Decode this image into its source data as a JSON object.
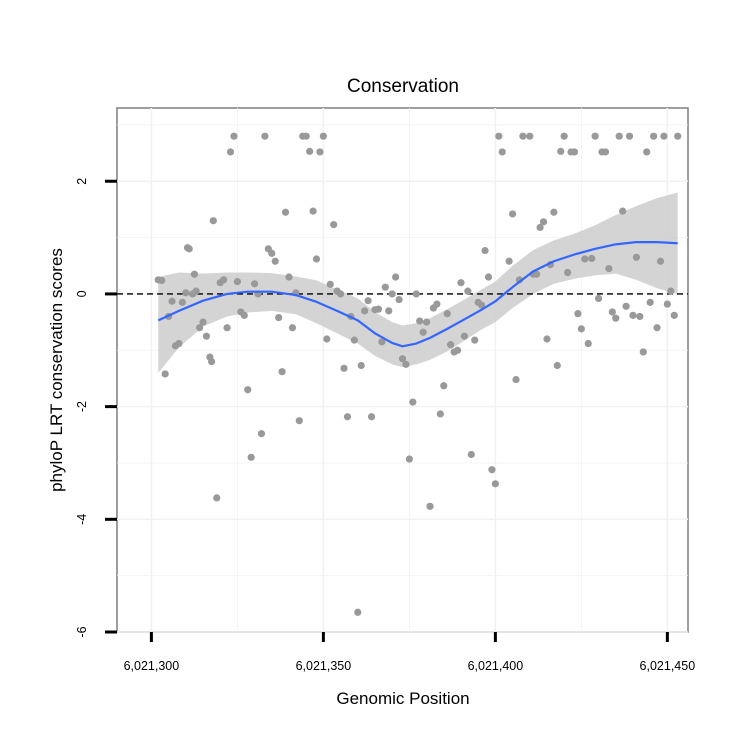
{
  "chart_data": {
    "type": "scatter",
    "title": "Conservation",
    "xlabel": "Genomic Position",
    "ylabel": "phyloP LRT conservation scores",
    "xlim": [
      6021290,
      6021456
    ],
    "ylim": [
      -6,
      3.3
    ],
    "x_ticks": [
      {
        "value": 6021300,
        "label": "6,021,300"
      },
      {
        "value": 6021350,
        "label": "6,021,350"
      },
      {
        "value": 6021400,
        "label": "6,021,400"
      },
      {
        "value": 6021450,
        "label": "6,021,450"
      }
    ],
    "y_ticks": [
      {
        "value": -6,
        "label": "-6"
      },
      {
        "value": -4,
        "label": "-4"
      },
      {
        "value": -2,
        "label": "-2"
      },
      {
        "value": 0,
        "label": "0"
      },
      {
        "value": 2,
        "label": "2"
      }
    ],
    "grid": true,
    "reference_line": {
      "y": 0,
      "style": "dashed"
    },
    "point_color": "#999999",
    "smooth_color": "#3366ff",
    "band_color": "#cccccc",
    "points": [
      [
        6021302,
        0.25
      ],
      [
        6021303,
        0.24
      ],
      [
        6021304,
        -1.42
      ],
      [
        6021305,
        -0.4
      ],
      [
        6021306,
        -0.13
      ],
      [
        6021307,
        -0.92
      ],
      [
        6021308,
        -0.88
      ],
      [
        6021309,
        -0.15
      ],
      [
        6021310,
        0.02
      ],
      [
        6021310.5,
        0.82
      ],
      [
        6021311,
        0.8
      ],
      [
        6021312,
        0.0
      ],
      [
        6021312.5,
        0.35
      ],
      [
        6021313,
        0.05
      ],
      [
        6021314,
        -0.6
      ],
      [
        6021315,
        -0.5
      ],
      [
        6021316,
        -0.75
      ],
      [
        6021317,
        -1.12
      ],
      [
        6021317.5,
        -1.2
      ],
      [
        6021318,
        1.3
      ],
      [
        6021319,
        -3.62
      ],
      [
        6021320,
        0.2
      ],
      [
        6021321,
        0.25
      ],
      [
        6021322,
        -0.6
      ],
      [
        6021323,
        2.52
      ],
      [
        6021324,
        2.8
      ],
      [
        6021325,
        0.22
      ],
      [
        6021326,
        -0.32
      ],
      [
        6021327,
        -0.38
      ],
      [
        6021328,
        -1.7
      ],
      [
        6021329,
        -2.9
      ],
      [
        6021330,
        0.18
      ],
      [
        6021331,
        0.0
      ],
      [
        6021332,
        -2.48
      ],
      [
        6021333,
        2.8
      ],
      [
        6021334,
        0.8
      ],
      [
        6021335,
        0.72
      ],
      [
        6021336,
        0.58
      ],
      [
        6021337,
        -0.42
      ],
      [
        6021338,
        -1.38
      ],
      [
        6021339,
        1.45
      ],
      [
        6021340,
        0.3
      ],
      [
        6021341,
        -0.6
      ],
      [
        6021342,
        0.02
      ],
      [
        6021343,
        -2.25
      ],
      [
        6021344,
        2.8
      ],
      [
        6021345,
        2.8
      ],
      [
        6021346,
        2.53
      ],
      [
        6021347,
        1.47
      ],
      [
        6021348,
        0.62
      ],
      [
        6021349,
        2.52
      ],
      [
        6021350,
        2.8
      ],
      [
        6021351,
        -0.8
      ],
      [
        6021352,
        0.17
      ],
      [
        6021353,
        1.23
      ],
      [
        6021354,
        0.05
      ],
      [
        6021355,
        0.0
      ],
      [
        6021356,
        -1.32
      ],
      [
        6021357,
        -2.18
      ],
      [
        6021358,
        -0.4
      ],
      [
        6021359,
        -0.82
      ],
      [
        6021360,
        -5.65
      ],
      [
        6021361,
        -1.27
      ],
      [
        6021362,
        -0.3
      ],
      [
        6021363,
        -0.12
      ],
      [
        6021364,
        -2.18
      ],
      [
        6021365,
        -0.28
      ],
      [
        6021366,
        -0.27
      ],
      [
        6021367,
        -0.85
      ],
      [
        6021368,
        0.12
      ],
      [
        6021369,
        -0.3
      ],
      [
        6021370,
        0.0
      ],
      [
        6021371,
        0.3
      ],
      [
        6021372,
        -0.1
      ],
      [
        6021373,
        -1.15
      ],
      [
        6021374,
        -1.25
      ],
      [
        6021375,
        -2.93
      ],
      [
        6021376,
        -1.92
      ],
      [
        6021377,
        0.0
      ],
      [
        6021378,
        -0.48
      ],
      [
        6021379,
        -0.68
      ],
      [
        6021380,
        -0.5
      ],
      [
        6021381,
        -3.77
      ],
      [
        6021382,
        -0.25
      ],
      [
        6021383,
        -0.18
      ],
      [
        6021384,
        -2.13
      ],
      [
        6021385,
        -1.63
      ],
      [
        6021386,
        -0.35
      ],
      [
        6021387,
        -0.9
      ],
      [
        6021388,
        -1.03
      ],
      [
        6021389,
        -1.0
      ],
      [
        6021390,
        0.2
      ],
      [
        6021391,
        -0.75
      ],
      [
        6021392,
        0.05
      ],
      [
        6021393,
        -2.85
      ],
      [
        6021394,
        -0.82
      ],
      [
        6021395,
        -0.15
      ],
      [
        6021396,
        -0.2
      ],
      [
        6021397,
        0.77
      ],
      [
        6021398,
        0.3
      ],
      [
        6021399,
        -3.12
      ],
      [
        6021400,
        -3.37
      ],
      [
        6021401,
        2.8
      ],
      [
        6021402,
        2.52
      ],
      [
        6021404,
        0.58
      ],
      [
        6021405,
        1.42
      ],
      [
        6021406,
        -1.52
      ],
      [
        6021407,
        0.25
      ],
      [
        6021408,
        2.8
      ],
      [
        6021410,
        2.8
      ],
      [
        6021411,
        0.35
      ],
      [
        6021412,
        0.35
      ],
      [
        6021413,
        1.18
      ],
      [
        6021414,
        1.28
      ],
      [
        6021415,
        -0.8
      ],
      [
        6021416,
        0.52
      ],
      [
        6021417,
        1.45
      ],
      [
        6021418,
        -1.27
      ],
      [
        6021419,
        2.53
      ],
      [
        6021420,
        2.8
      ],
      [
        6021421,
        0.38
      ],
      [
        6021422,
        2.52
      ],
      [
        6021423,
        2.52
      ],
      [
        6021424,
        -0.35
      ],
      [
        6021425,
        -0.62
      ],
      [
        6021426,
        0.62
      ],
      [
        6021427,
        -0.88
      ],
      [
        6021428,
        0.63
      ],
      [
        6021429,
        2.8
      ],
      [
        6021430,
        -0.08
      ],
      [
        6021431,
        2.52
      ],
      [
        6021432,
        2.52
      ],
      [
        6021433,
        0.45
      ],
      [
        6021434,
        -0.32
      ],
      [
        6021435,
        -0.43
      ],
      [
        6021436,
        2.8
      ],
      [
        6021437,
        1.47
      ],
      [
        6021438,
        -0.22
      ],
      [
        6021439,
        2.8
      ],
      [
        6021440,
        -0.38
      ],
      [
        6021441,
        0.65
      ],
      [
        6021442,
        -0.4
      ],
      [
        6021443,
        -1.03
      ],
      [
        6021444,
        2.52
      ],
      [
        6021445,
        -0.15
      ],
      [
        6021446,
        2.8
      ],
      [
        6021447,
        -0.6
      ],
      [
        6021448,
        0.58
      ],
      [
        6021449,
        2.8
      ],
      [
        6021450,
        -0.18
      ],
      [
        6021451,
        0.05
      ],
      [
        6021452,
        -0.38
      ],
      [
        6021453,
        2.8
      ]
    ],
    "smooth": [
      [
        6021302,
        -0.47,
        -1.4,
        0.3
      ],
      [
        6021308,
        -0.3,
        -0.95,
        0.38
      ],
      [
        6021315,
        -0.12,
        -0.58,
        0.36
      ],
      [
        6021322,
        0.0,
        -0.4,
        0.38
      ],
      [
        6021328,
        0.04,
        -0.33,
        0.38
      ],
      [
        6021335,
        0.04,
        -0.3,
        0.37
      ],
      [
        6021342,
        -0.02,
        -0.36,
        0.31
      ],
      [
        6021348,
        -0.14,
        -0.52,
        0.24
      ],
      [
        6021354,
        -0.3,
        -0.7,
        0.08
      ],
      [
        6021360,
        -0.47,
        -0.88,
        -0.08
      ],
      [
        6021365,
        -0.7,
        -1.1,
        -0.32
      ],
      [
        6021370,
        -0.87,
        -1.25,
        -0.5
      ],
      [
        6021373,
        -0.93,
        -1.3,
        -0.56
      ],
      [
        6021377,
        -0.88,
        -1.25,
        -0.52
      ],
      [
        6021381,
        -0.78,
        -1.17,
        -0.43
      ],
      [
        6021386,
        -0.62,
        -1.02,
        -0.27
      ],
      [
        6021391,
        -0.45,
        -0.83,
        -0.1
      ],
      [
        6021396,
        -0.28,
        -0.63,
        0.08
      ],
      [
        6021400,
        -0.13,
        -0.5,
        0.22
      ],
      [
        6021405,
        0.12,
        -0.25,
        0.5
      ],
      [
        6021411,
        0.4,
        0.0,
        0.78
      ],
      [
        6021417,
        0.58,
        0.18,
        0.95
      ],
      [
        6021423,
        0.7,
        0.27,
        1.07
      ],
      [
        6021429,
        0.8,
        0.33,
        1.22
      ],
      [
        6021435,
        0.88,
        0.36,
        1.4
      ],
      [
        6021441,
        0.92,
        0.25,
        1.56
      ],
      [
        6021447,
        0.92,
        0.1,
        1.7
      ],
      [
        6021453,
        0.9,
        0.0,
        1.8
      ]
    ]
  }
}
